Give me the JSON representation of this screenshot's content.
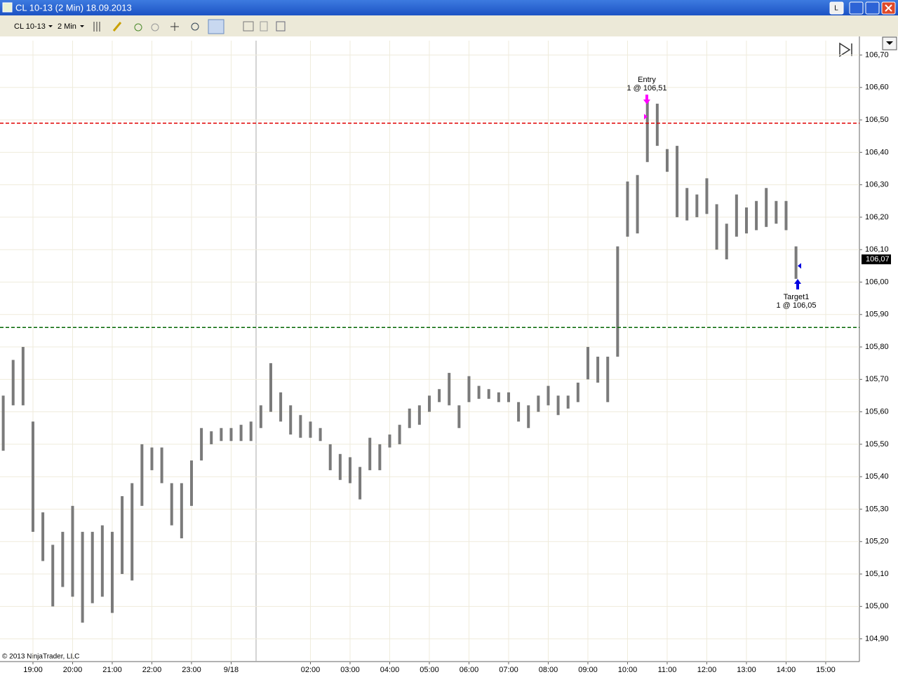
{
  "window": {
    "title": "CL 10-13 (2 Min)  18.09.2013",
    "instrument": "CL 10-13",
    "interval": "2 Min",
    "copyright": "© 2013 NinjaTrader, LLC"
  },
  "chart_data": {
    "type": "hilo",
    "color": "#7a7a7a",
    "categories": [
      null,
      null,
      null,
      "19:00",
      null,
      null,
      null,
      "20:00",
      null,
      null,
      null,
      "21:00",
      null,
      null,
      null,
      "22:00",
      null,
      null,
      null,
      "23:00",
      null,
      null,
      null,
      "9/18",
      null,
      null,
      null,
      null,
      null,
      null,
      null,
      "02:00",
      null,
      null,
      null,
      "03:00",
      null,
      null,
      null,
      "04:00",
      null,
      null,
      null,
      "05:00",
      null,
      null,
      null,
      "06:00",
      null,
      null,
      null,
      "07:00",
      null,
      null,
      null,
      "08:00",
      null,
      null,
      null,
      "09:00",
      null,
      null,
      null,
      "10:00",
      null,
      null,
      null,
      "11:00",
      null,
      null,
      null,
      "12:00",
      null,
      null,
      null,
      "13:00",
      null,
      null,
      null,
      "14:00",
      null,
      null,
      null,
      "15:00"
    ],
    "high": [
      105.65,
      105.76,
      105.8,
      105.57,
      105.29,
      105.19,
      105.23,
      105.31,
      105.23,
      105.23,
      105.25,
      105.23,
      105.34,
      105.38,
      105.5,
      105.49,
      105.49,
      105.38,
      105.38,
      105.45,
      105.55,
      105.54,
      105.55,
      105.55,
      105.56,
      105.57,
      105.62,
      105.75,
      105.66,
      105.62,
      105.59,
      105.57,
      105.55,
      105.5,
      105.47,
      105.46,
      105.43,
      105.52,
      105.5,
      105.53,
      105.56,
      105.61,
      105.62,
      105.65,
      105.67,
      105.72,
      105.62,
      105.71,
      105.68,
      105.67,
      105.66,
      105.66,
      105.63,
      105.62,
      105.65,
      105.68,
      105.65,
      105.65,
      105.69,
      105.8,
      105.77,
      105.77,
      106.11,
      106.31,
      106.33,
      106.56,
      106.55,
      106.41,
      106.42,
      106.29,
      106.27,
      106.32,
      106.24,
      106.18,
      106.27,
      106.23,
      106.25,
      106.29,
      106.25,
      106.25,
      106.11,
      null,
      null,
      null
    ],
    "low": [
      105.48,
      105.62,
      105.62,
      105.23,
      105.14,
      105.0,
      105.06,
      105.03,
      104.95,
      105.01,
      105.03,
      104.98,
      105.1,
      105.08,
      105.31,
      105.42,
      105.38,
      105.25,
      105.21,
      105.31,
      105.45,
      105.5,
      105.51,
      105.51,
      105.51,
      105.51,
      105.55,
      105.6,
      105.57,
      105.53,
      105.52,
      105.52,
      105.51,
      105.42,
      105.39,
      105.38,
      105.33,
      105.42,
      105.42,
      105.49,
      105.5,
      105.55,
      105.56,
      105.6,
      105.63,
      105.62,
      105.55,
      105.63,
      105.64,
      105.64,
      105.63,
      105.63,
      105.57,
      105.55,
      105.6,
      105.62,
      105.59,
      105.61,
      105.63,
      105.7,
      105.69,
      105.63,
      105.77,
      106.14,
      106.15,
      106.37,
      106.42,
      106.34,
      106.2,
      106.19,
      106.2,
      106.21,
      106.1,
      106.07,
      106.14,
      106.15,
      106.16,
      106.17,
      106.18,
      106.16,
      106.01,
      null,
      null,
      null
    ],
    "ylim": [
      104.83,
      106.74
    ],
    "yticks": [
      {
        "value": 104.9,
        "label": "104,90"
      },
      {
        "value": 105.0,
        "label": "105,00"
      },
      {
        "value": 105.1,
        "label": "105,10"
      },
      {
        "value": 105.2,
        "label": "105,20"
      },
      {
        "value": 105.3,
        "label": "105,30"
      },
      {
        "value": 105.4,
        "label": "105,40"
      },
      {
        "value": 105.5,
        "label": "105,50"
      },
      {
        "value": 105.6,
        "label": "105,60"
      },
      {
        "value": 105.7,
        "label": "105,70"
      },
      {
        "value": 105.8,
        "label": "105,80"
      },
      {
        "value": 105.9,
        "label": "105,90"
      },
      {
        "value": 106.0,
        "label": "106,00"
      },
      {
        "value": 106.1,
        "label": "106,10"
      },
      {
        "value": 106.2,
        "label": "106,20"
      },
      {
        "value": 106.3,
        "label": "106,30"
      },
      {
        "value": 106.4,
        "label": "106,40"
      },
      {
        "value": 106.5,
        "label": "106,50"
      },
      {
        "value": 106.6,
        "label": "106,60"
      },
      {
        "value": 106.7,
        "label": "106,70"
      }
    ],
    "grid": true,
    "hlines": [
      {
        "value": 106.49,
        "color": "#e00000"
      },
      {
        "value": 105.86,
        "color": "#006400"
      }
    ],
    "last": {
      "value": 106.07,
      "label": "106,07"
    },
    "annotations": [
      {
        "text": "Entry",
        "label": "1 @ 106,51",
        "value": 106.51,
        "color": "#ff00ff"
      },
      {
        "text": "Target1",
        "label": "1 @ 106,05",
        "value": 106.05,
        "color": "#0000e0"
      }
    ]
  }
}
